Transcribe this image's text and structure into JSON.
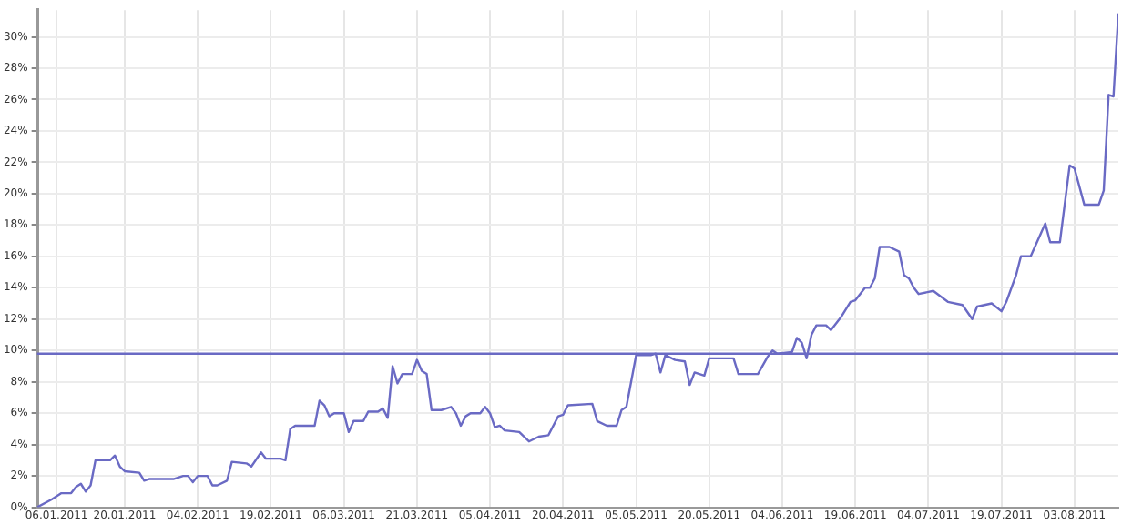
{
  "chart_data": {
    "type": "line",
    "x": [
      "2011-01-02",
      "2011-01-05",
      "2011-01-07",
      "2011-01-09",
      "2011-01-10",
      "2011-01-11",
      "2011-01-12",
      "2011-01-13",
      "2011-01-14",
      "2011-01-17",
      "2011-01-18",
      "2011-01-19",
      "2011-01-20",
      "2011-01-23",
      "2011-01-24",
      "2011-01-25",
      "2011-01-30",
      "2011-02-01",
      "2011-02-02",
      "2011-02-03",
      "2011-02-04",
      "2011-02-06",
      "2011-02-07",
      "2011-02-08",
      "2011-02-10",
      "2011-02-11",
      "2011-02-14",
      "2011-02-15",
      "2011-02-17",
      "2011-02-18",
      "2011-02-21",
      "2011-02-22",
      "2011-02-23",
      "2011-02-24",
      "2011-02-28",
      "2011-03-01",
      "2011-03-02",
      "2011-03-03",
      "2011-03-04",
      "2011-03-06",
      "2011-03-07",
      "2011-03-08",
      "2011-03-10",
      "2011-03-11",
      "2011-03-13",
      "2011-03-14",
      "2011-03-15",
      "2011-03-16",
      "2011-03-17",
      "2011-03-18",
      "2011-03-20",
      "2011-03-21",
      "2011-03-22",
      "2011-03-23",
      "2011-03-24",
      "2011-03-26",
      "2011-03-28",
      "2011-03-29",
      "2011-03-30",
      "2011-03-31",
      "2011-04-01",
      "2011-04-03",
      "2011-04-04",
      "2011-04-05",
      "2011-04-06",
      "2011-04-07",
      "2011-04-08",
      "2011-04-11",
      "2011-04-13",
      "2011-04-15",
      "2011-04-17",
      "2011-04-19",
      "2011-04-20",
      "2011-04-21",
      "2011-04-26",
      "2011-04-27",
      "2011-04-29",
      "2011-05-01",
      "2011-05-02",
      "2011-05-03",
      "2011-05-05",
      "2011-05-08",
      "2011-05-09",
      "2011-05-10",
      "2011-05-11",
      "2011-05-13",
      "2011-05-15",
      "2011-05-16",
      "2011-05-17",
      "2011-05-19",
      "2011-05-20",
      "2011-05-25",
      "2011-05-26",
      "2011-05-30",
      "2011-06-01",
      "2011-06-02",
      "2011-06-03",
      "2011-06-06",
      "2011-06-07",
      "2011-06-08",
      "2011-06-09",
      "2011-06-10",
      "2011-06-11",
      "2011-06-13",
      "2011-06-14",
      "2011-06-16",
      "2011-06-18",
      "2011-06-19",
      "2011-06-21",
      "2011-06-22",
      "2011-06-23",
      "2011-06-24",
      "2011-06-26",
      "2011-06-28",
      "2011-06-29",
      "2011-06-30",
      "2011-07-01",
      "2011-07-02",
      "2011-07-05",
      "2011-07-08",
      "2011-07-11",
      "2011-07-13",
      "2011-07-14",
      "2011-07-17",
      "2011-07-19",
      "2011-07-20",
      "2011-07-22",
      "2011-07-23",
      "2011-07-25",
      "2011-07-28",
      "2011-07-29",
      "2011-07-31",
      "2011-08-02",
      "2011-08-03",
      "2011-08-05",
      "2011-08-08",
      "2011-08-09",
      "2011-08-10",
      "2011-08-11",
      "2011-08-12"
    ],
    "series": [
      {
        "color": "#6a6ac4",
        "values": [
          0,
          0.5,
          0.9,
          0.9,
          1.3,
          1.5,
          1.0,
          1.4,
          3.0,
          3.0,
          3.3,
          2.6,
          2.3,
          2.2,
          1.7,
          1.8,
          1.8,
          2.0,
          2.0,
          1.6,
          2.0,
          2.0,
          1.4,
          1.4,
          1.7,
          2.9,
          2.8,
          2.6,
          3.5,
          3.1,
          3.1,
          3.0,
          5.0,
          5.2,
          5.2,
          6.8,
          6.5,
          5.8,
          6.0,
          6.0,
          4.8,
          5.5,
          5.5,
          6.1,
          6.1,
          6.3,
          5.7,
          9.0,
          7.9,
          8.5,
          8.5,
          9.4,
          8.7,
          8.5,
          6.2,
          6.2,
          6.4,
          6.0,
          5.2,
          5.8,
          6.0,
          6.0,
          6.4,
          6.0,
          5.1,
          5.2,
          4.9,
          4.8,
          4.2,
          4.5,
          4.6,
          5.8,
          5.9,
          6.5,
          6.6,
          5.5,
          5.2,
          5.2,
          6.2,
          6.4,
          9.7,
          9.7,
          9.8,
          8.6,
          9.7,
          9.4,
          9.3,
          7.8,
          8.6,
          8.4,
          9.5,
          9.5,
          8.5,
          8.5,
          9.6,
          10.0,
          9.8,
          9.9,
          10.8,
          10.5,
          9.5,
          11.0,
          11.6,
          11.6,
          11.3,
          12.1,
          13.1,
          13.2,
          14.0,
          14.0,
          14.6,
          16.6,
          16.6,
          16.3,
          14.8,
          14.6,
          14.0,
          13.6,
          13.8,
          13.1,
          12.9,
          12.0,
          12.8,
          13.0,
          12.5,
          13.1,
          14.8,
          16.0,
          16.0,
          18.1,
          16.9,
          16.9,
          21.8,
          21.6,
          19.3,
          19.3,
          20.2,
          26.3,
          26.2,
          31.5
        ]
      }
    ],
    "xlim": [
      "2011-01-02",
      "2011-08-12"
    ],
    "xticks": [
      {
        "value": "2011-01-06",
        "label": "06.01.2011"
      },
      {
        "value": "2011-01-20",
        "label": "20.01.2011"
      },
      {
        "value": "2011-02-04",
        "label": "04.02.2011"
      },
      {
        "value": "2011-02-19",
        "label": "19.02.2011"
      },
      {
        "value": "2011-03-06",
        "label": "06.03.2011"
      },
      {
        "value": "2011-03-21",
        "label": "21.03.2011"
      },
      {
        "value": "2011-04-05",
        "label": "05.04.2011"
      },
      {
        "value": "2011-04-20",
        "label": "20.04.2011"
      },
      {
        "value": "2011-05-05",
        "label": "05.05.2011"
      },
      {
        "value": "2011-05-20",
        "label": "20.05.2011"
      },
      {
        "value": "2011-06-04",
        "label": "04.06.2011"
      },
      {
        "value": "2011-06-19",
        "label": "19.06.2011"
      },
      {
        "value": "2011-07-04",
        "label": "04.07.2011"
      },
      {
        "value": "2011-07-19",
        "label": "19.07.2011"
      },
      {
        "value": "2011-08-03",
        "label": "03.08.2011"
      }
    ],
    "ylim": [
      0,
      31.7
    ],
    "yticks": [
      {
        "value": 0,
        "label": "0%"
      },
      {
        "value": 2,
        "label": "2%"
      },
      {
        "value": 4,
        "label": "4%"
      },
      {
        "value": 6,
        "label": "6%"
      },
      {
        "value": 8,
        "label": "8%"
      },
      {
        "value": 10,
        "label": "10%"
      },
      {
        "value": 12,
        "label": "12%"
      },
      {
        "value": 14,
        "label": "14%"
      },
      {
        "value": 16,
        "label": "16%"
      },
      {
        "value": 18,
        "label": "18%"
      },
      {
        "value": 20,
        "label": "20%"
      },
      {
        "value": 22,
        "label": "22%"
      },
      {
        "value": 24,
        "label": "24%"
      },
      {
        "value": 26,
        "label": "26%"
      },
      {
        "value": 28,
        "label": "28%"
      },
      {
        "value": 30,
        "label": "30%"
      }
    ],
    "ref_lines": [
      {
        "axis": "y",
        "value": 9.8,
        "color": "#6a6ac4"
      }
    ],
    "grid": true,
    "legend": false,
    "marker": "none"
  }
}
